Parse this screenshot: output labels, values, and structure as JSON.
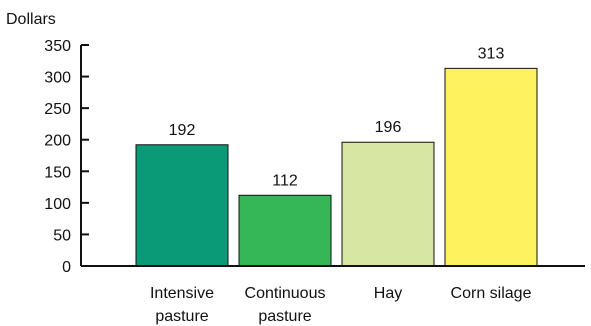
{
  "chart_data": {
    "type": "bar",
    "ylabel": "Dollars",
    "xlabel": "",
    "ylim": [
      0,
      350
    ],
    "yticks": [
      0,
      50,
      100,
      150,
      200,
      250,
      300,
      350
    ],
    "grid": false,
    "categories": [
      [
        "Intensive",
        "pasture"
      ],
      [
        "Continuous",
        "pasture"
      ],
      [
        "Hay"
      ],
      [
        "Corn silage"
      ]
    ],
    "values": [
      192,
      112,
      196,
      313
    ],
    "colors": [
      "#0a9a78",
      "#35b657",
      "#d7e6a3",
      "#fef25e"
    ],
    "bar_outline": "#111111",
    "axis_color": "#111111"
  }
}
